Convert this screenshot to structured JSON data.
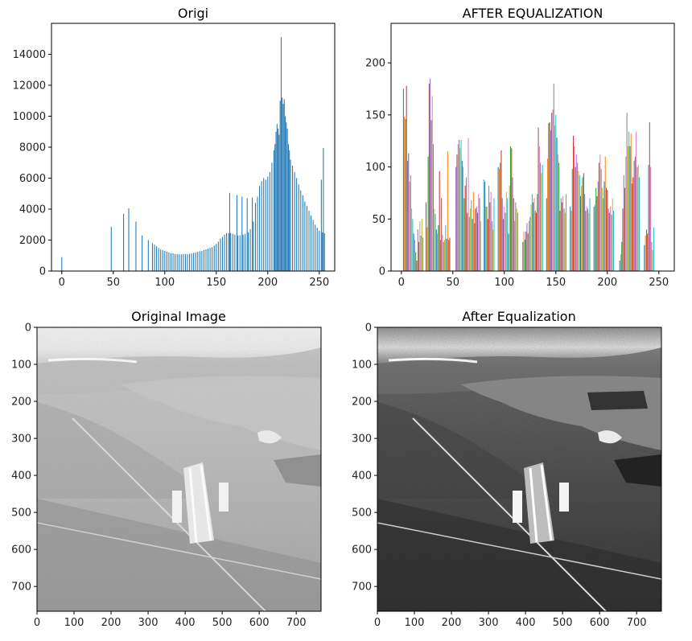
{
  "chart_data": [
    {
      "type": "bar",
      "title": "Origi",
      "xlabel": "",
      "ylabel": "",
      "xlim": [
        -10,
        265
      ],
      "ylim": [
        0,
        16000
      ],
      "xticks": [
        0,
        50,
        100,
        150,
        200,
        250
      ],
      "yticks": [
        0,
        2000,
        4000,
        6000,
        8000,
        10000,
        12000,
        14000
      ],
      "color": "#1f77b4",
      "bins": [
        [
          0,
          900
        ],
        [
          48,
          2850
        ],
        [
          60,
          3700
        ],
        [
          65,
          4050
        ],
        [
          72,
          3200
        ],
        [
          78,
          2300
        ],
        [
          84,
          2000
        ],
        [
          88,
          1800
        ],
        [
          90,
          1700
        ],
        [
          92,
          1600
        ],
        [
          94,
          1500
        ],
        [
          96,
          1400
        ],
        [
          98,
          1350
        ],
        [
          100,
          1300
        ],
        [
          102,
          1250
        ],
        [
          104,
          1200
        ],
        [
          106,
          1150
        ],
        [
          108,
          1150
        ],
        [
          110,
          1100
        ],
        [
          112,
          1100
        ],
        [
          114,
          1080
        ],
        [
          116,
          1080
        ],
        [
          118,
          1100
        ],
        [
          120,
          1100
        ],
        [
          122,
          1100
        ],
        [
          124,
          1120
        ],
        [
          126,
          1150
        ],
        [
          128,
          1180
        ],
        [
          130,
          1200
        ],
        [
          132,
          1250
        ],
        [
          134,
          1280
        ],
        [
          136,
          1300
        ],
        [
          138,
          1350
        ],
        [
          140,
          1400
        ],
        [
          142,
          1450
        ],
        [
          144,
          1500
        ],
        [
          146,
          1550
        ],
        [
          148,
          1650
        ],
        [
          150,
          1750
        ],
        [
          152,
          1900
        ],
        [
          154,
          2100
        ],
        [
          156,
          2200
        ],
        [
          158,
          2350
        ],
        [
          160,
          2450
        ],
        [
          162,
          2450
        ],
        [
          163,
          5050
        ],
        [
          164,
          2450
        ],
        [
          166,
          2400
        ],
        [
          168,
          2350
        ],
        [
          170,
          4900
        ],
        [
          171,
          2300
        ],
        [
          173,
          2300
        ],
        [
          175,
          4800
        ],
        [
          176,
          2350
        ],
        [
          178,
          2400
        ],
        [
          180,
          4700
        ],
        [
          181,
          2500
        ],
        [
          183,
          2700
        ],
        [
          185,
          4750
        ],
        [
          186,
          3200
        ],
        [
          188,
          4400
        ],
        [
          190,
          4800
        ],
        [
          192,
          5500
        ],
        [
          194,
          5800
        ],
        [
          196,
          6000
        ],
        [
          198,
          5900
        ],
        [
          200,
          6100
        ],
        [
          202,
          6400
        ],
        [
          204,
          7000
        ],
        [
          206,
          7800
        ],
        [
          207,
          8200
        ],
        [
          208,
          9000
        ],
        [
          209,
          9500
        ],
        [
          210,
          9200
        ],
        [
          211,
          8800
        ],
        [
          212,
          11000
        ],
        [
          213,
          15100
        ],
        [
          214,
          11200
        ],
        [
          215,
          10800
        ],
        [
          216,
          11100
        ],
        [
          217,
          10000
        ],
        [
          218,
          9600
        ],
        [
          219,
          9200
        ],
        [
          220,
          8200
        ],
        [
          221,
          7800
        ],
        [
          222,
          7200
        ],
        [
          224,
          6800
        ],
        [
          226,
          6400
        ],
        [
          228,
          6000
        ],
        [
          230,
          5600
        ],
        [
          232,
          5200
        ],
        [
          234,
          4900
        ],
        [
          236,
          4500
        ],
        [
          238,
          4200
        ],
        [
          240,
          3900
        ],
        [
          242,
          3600
        ],
        [
          244,
          3300
        ],
        [
          246,
          3000
        ],
        [
          248,
          2800
        ],
        [
          250,
          2600
        ],
        [
          252,
          5900
        ],
        [
          253,
          2500
        ],
        [
          254,
          7950
        ],
        [
          255,
          2450
        ]
      ]
    },
    {
      "type": "bar",
      "title": "AFTER EQUALIZATION",
      "xlabel": "",
      "ylabel": "",
      "xlim": [
        -10,
        265
      ],
      "ylim": [
        0,
        238
      ],
      "xticks": [
        0,
        50,
        100,
        150,
        200,
        250
      ],
      "yticks": [
        0,
        50,
        100,
        150,
        200
      ],
      "colors": [
        "#1f77b4",
        "#ff7f0e",
        "#2ca02c",
        "#d62728",
        "#9467bd",
        "#8c564b",
        "#e377c2",
        "#7f7f7f",
        "#bcbd22",
        "#17becf"
      ],
      "bins": [
        [
          2,
          175
        ],
        [
          3,
          148
        ],
        [
          4,
          146
        ],
        [
          5,
          178
        ],
        [
          6,
          106
        ],
        [
          7,
          113
        ],
        [
          8,
          86
        ],
        [
          9,
          92
        ],
        [
          10,
          60
        ],
        [
          11,
          50
        ],
        [
          12,
          36
        ],
        [
          13,
          30
        ],
        [
          14,
          18
        ],
        [
          15,
          10
        ],
        [
          16,
          40
        ],
        [
          17,
          28
        ],
        [
          18,
          48
        ],
        [
          19,
          34
        ],
        [
          20,
          50
        ],
        [
          21,
          32
        ],
        [
          24,
          66
        ],
        [
          25,
          42
        ],
        [
          26,
          110
        ],
        [
          27,
          180
        ],
        [
          28,
          185
        ],
        [
          29,
          145
        ],
        [
          30,
          168
        ],
        [
          31,
          122
        ],
        [
          32,
          60
        ],
        [
          33,
          55
        ],
        [
          34,
          40
        ],
        [
          35,
          36
        ],
        [
          36,
          44
        ],
        [
          37,
          96
        ],
        [
          38,
          30
        ],
        [
          39,
          70
        ],
        [
          40,
          35
        ],
        [
          41,
          28
        ],
        [
          42,
          30
        ],
        [
          43,
          44
        ],
        [
          44,
          31
        ],
        [
          45,
          115
        ],
        [
          46,
          30
        ],
        [
          47,
          32
        ],
        [
          53,
          100
        ],
        [
          54,
          112
        ],
        [
          55,
          122
        ],
        [
          56,
          126
        ],
        [
          57,
          118
        ],
        [
          58,
          126
        ],
        [
          59,
          106
        ],
        [
          60,
          100
        ],
        [
          61,
          70
        ],
        [
          62,
          82
        ],
        [
          63,
          90
        ],
        [
          64,
          56
        ],
        [
          65,
          128
        ],
        [
          66,
          52
        ],
        [
          67,
          60
        ],
        [
          68,
          68
        ],
        [
          69,
          50
        ],
        [
          70,
          76
        ],
        [
          71,
          46
        ],
        [
          72,
          60
        ],
        [
          73,
          62
        ],
        [
          74,
          56
        ],
        [
          75,
          74
        ],
        [
          76,
          70
        ],
        [
          77,
          48
        ],
        [
          80,
          88
        ],
        [
          81,
          86
        ],
        [
          82,
          62
        ],
        [
          83,
          62
        ],
        [
          84,
          50
        ],
        [
          85,
          82
        ],
        [
          86,
          66
        ],
        [
          87,
          76
        ],
        [
          88,
          48
        ],
        [
          89,
          40
        ],
        [
          90,
          70
        ],
        [
          94,
          100
        ],
        [
          95,
          98
        ],
        [
          96,
          104
        ],
        [
          97,
          116
        ],
        [
          98,
          70
        ],
        [
          99,
          50
        ],
        [
          100,
          62
        ],
        [
          101,
          56
        ],
        [
          102,
          76
        ],
        [
          103,
          70
        ],
        [
          104,
          36
        ],
        [
          105,
          82
        ],
        [
          106,
          120
        ],
        [
          107,
          118
        ],
        [
          108,
          90
        ],
        [
          109,
          70
        ],
        [
          110,
          48
        ],
        [
          111,
          66
        ],
        [
          112,
          60
        ],
        [
          113,
          56
        ],
        [
          118,
          28
        ],
        [
          119,
          38
        ],
        [
          120,
          30
        ],
        [
          121,
          38
        ],
        [
          122,
          46
        ],
        [
          123,
          36
        ],
        [
          124,
          48
        ],
        [
          125,
          52
        ],
        [
          126,
          64
        ],
        [
          127,
          74
        ],
        [
          128,
          66
        ],
        [
          129,
          70
        ],
        [
          130,
          58
        ],
        [
          131,
          56
        ],
        [
          132,
          74
        ],
        [
          133,
          138
        ],
        [
          134,
          120
        ],
        [
          135,
          104
        ],
        [
          136,
          94
        ],
        [
          137,
          102
        ],
        [
          141,
          70
        ],
        [
          142,
          108
        ],
        [
          143,
          142
        ],
        [
          144,
          143
        ],
        [
          145,
          135
        ],
        [
          146,
          152
        ],
        [
          147,
          155
        ],
        [
          148,
          180
        ],
        [
          149,
          140
        ],
        [
          150,
          150
        ],
        [
          151,
          128
        ],
        [
          152,
          112
        ],
        [
          153,
          104
        ],
        [
          154,
          58
        ],
        [
          155,
          70
        ],
        [
          156,
          66
        ],
        [
          157,
          72
        ],
        [
          158,
          60
        ],
        [
          159,
          56
        ],
        [
          160,
          74
        ],
        [
          164,
          62
        ],
        [
          165,
          58
        ],
        [
          166,
          98
        ],
        [
          167,
          130
        ],
        [
          168,
          120
        ],
        [
          169,
          100
        ],
        [
          170,
          112
        ],
        [
          171,
          104
        ],
        [
          172,
          96
        ],
        [
          173,
          92
        ],
        [
          174,
          72
        ],
        [
          175,
          82
        ],
        [
          176,
          90
        ],
        [
          177,
          94
        ],
        [
          178,
          74
        ],
        [
          179,
          58
        ],
        [
          180,
          62
        ],
        [
          181,
          60
        ],
        [
          182,
          56
        ],
        [
          183,
          70
        ],
        [
          187,
          62
        ],
        [
          188,
          64
        ],
        [
          189,
          80
        ],
        [
          190,
          72
        ],
        [
          191,
          86
        ],
        [
          192,
          104
        ],
        [
          193,
          112
        ],
        [
          194,
          98
        ],
        [
          195,
          80
        ],
        [
          196,
          70
        ],
        [
          197,
          86
        ],
        [
          198,
          110
        ],
        [
          199,
          80
        ],
        [
          200,
          78
        ],
        [
          201,
          60
        ],
        [
          202,
          56
        ],
        [
          203,
          62
        ],
        [
          204,
          54
        ],
        [
          205,
          70
        ],
        [
          206,
          58
        ],
        [
          212,
          10
        ],
        [
          213,
          16
        ],
        [
          214,
          28
        ],
        [
          215,
          60
        ],
        [
          216,
          92
        ],
        [
          217,
          80
        ],
        [
          218,
          110
        ],
        [
          219,
          152
        ],
        [
          220,
          120
        ],
        [
          221,
          134
        ],
        [
          222,
          120
        ],
        [
          223,
          132
        ],
        [
          224,
          84
        ],
        [
          225,
          90
        ],
        [
          226,
          106
        ],
        [
          227,
          110
        ],
        [
          228,
          134
        ],
        [
          229,
          100
        ],
        [
          230,
          102
        ],
        [
          231,
          90
        ],
        [
          236,
          25
        ],
        [
          237,
          34
        ],
        [
          238,
          40
        ],
        [
          239,
          36
        ],
        [
          240,
          102
        ],
        [
          241,
          143
        ],
        [
          242,
          100
        ],
        [
          243,
          28
        ],
        [
          244,
          20
        ],
        [
          245,
          42
        ]
      ]
    },
    {
      "type": "image",
      "title": "Original Image",
      "xlim": [
        0,
        767
      ],
      "ylim": [
        767,
        0
      ],
      "xticks": [
        0,
        100,
        200,
        300,
        400,
        500,
        600,
        700
      ],
      "yticks": [
        0,
        100,
        200,
        300,
        400,
        500,
        600,
        700
      ]
    },
    {
      "type": "image",
      "title": "After Equalization",
      "xlim": [
        0,
        767
      ],
      "ylim": [
        767,
        0
      ],
      "xticks": [
        0,
        100,
        200,
        300,
        400,
        500,
        600,
        700
      ],
      "yticks": [
        0,
        100,
        200,
        300,
        400,
        500,
        600,
        700
      ]
    }
  ]
}
